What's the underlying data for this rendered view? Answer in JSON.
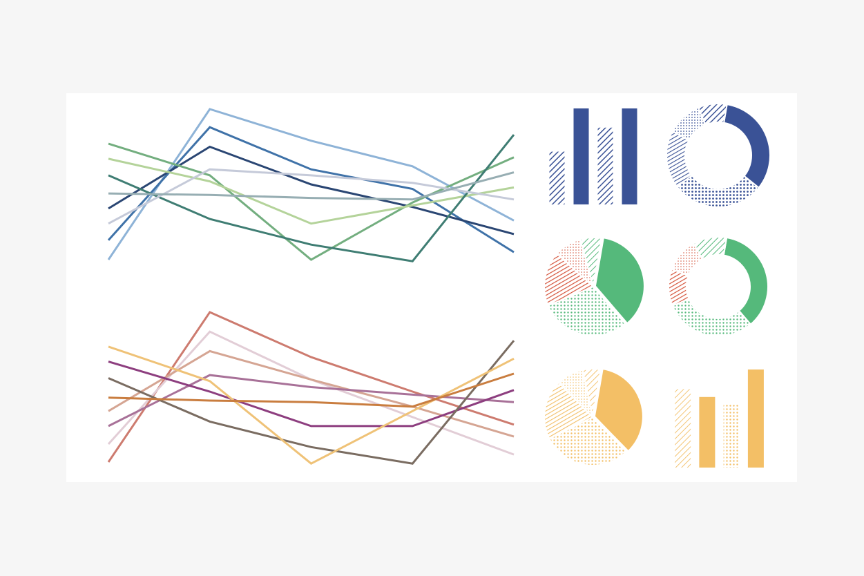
{
  "colors": {
    "background": "#f6f6f6",
    "panel": "#ffffff",
    "navy": "#3a5296",
    "green": "#55b97b",
    "red": "#d5553c",
    "yellow": "#f3bf66"
  },
  "chart_data": [
    {
      "type": "line",
      "x": [
        0,
        1,
        2,
        3,
        4
      ],
      "ylim": [
        0,
        100
      ],
      "series": [
        {
          "color": "#8eb3d7",
          "values": [
            0,
            100,
            79,
            62,
            26
          ]
        },
        {
          "color": "#3f72a8",
          "values": [
            13,
            88,
            60,
            47,
            5
          ]
        },
        {
          "color": "#2a4673",
          "values": [
            34,
            75,
            50,
            35,
            17
          ]
        },
        {
          "color": "#73ae7f",
          "values": [
            77,
            56,
            0,
            38,
            68
          ]
        },
        {
          "color": "#b4d39a",
          "values": [
            67,
            52,
            24,
            36,
            48
          ]
        },
        {
          "color": "#3f7d73",
          "values": [
            56,
            27,
            10,
            -1,
            83
          ]
        },
        {
          "color": "#c5cad9",
          "values": [
            24,
            60,
            56,
            51,
            40
          ]
        },
        {
          "color": "#97aeb3",
          "values": [
            44,
            43,
            41,
            40,
            58
          ]
        }
      ]
    },
    {
      "type": "line",
      "x": [
        0,
        1,
        2,
        3,
        4
      ],
      "ylim": [
        0,
        100
      ],
      "series": [
        {
          "color": "#cd7b6f",
          "values": [
            0,
            100,
            70,
            47,
            25
          ]
        },
        {
          "color": "#e2cdd6",
          "values": [
            12,
            87,
            55,
            30,
            5
          ]
        },
        {
          "color": "#d5a593",
          "values": [
            34,
            74,
            55,
            37,
            17
          ]
        },
        {
          "color": "#a87198",
          "values": [
            24,
            58,
            50,
            45,
            40
          ]
        },
        {
          "color": "#8d3e7f",
          "values": [
            67,
            47,
            24,
            24,
            48
          ]
        },
        {
          "color": "#7a6c61",
          "values": [
            56,
            27,
            10,
            -1,
            81
          ]
        },
        {
          "color": "#efc277",
          "values": [
            77,
            54,
            -1,
            34,
            69
          ]
        },
        {
          "color": "#c97d3f",
          "values": [
            43,
            41,
            40,
            37,
            59
          ]
        }
      ]
    },
    {
      "type": "bar",
      "color": "#3a5296",
      "values": [
        55,
        100,
        80,
        100
      ],
      "fills": [
        "hatch",
        "solid",
        "hatch",
        "solid"
      ]
    },
    {
      "type": "pie",
      "variant": "donut",
      "color": "#3a5296",
      "values": [
        33,
        29,
        18,
        11,
        9
      ],
      "fills": [
        "solid",
        "dots",
        "lines",
        "dots",
        "hatch"
      ]
    },
    {
      "type": "pie",
      "color": "#55b97b",
      "accent": "#d5553c",
      "values": [
        36,
        30,
        18,
        9,
        7
      ],
      "fills": [
        "solid",
        "dots",
        "lines",
        "dots",
        "hatch"
      ]
    },
    {
      "type": "pie",
      "variant": "donut",
      "color": "#55b97b",
      "accent": "#d5553c",
      "values": [
        36,
        30,
        12,
        11,
        11
      ],
      "fills": [
        "solid",
        "dots",
        "lines",
        "dots",
        "hatch"
      ]
    },
    {
      "type": "pie",
      "color": "#f3bf66",
      "values": [
        35,
        30,
        20,
        9,
        6
      ],
      "fills": [
        "solid",
        "dots",
        "lines",
        "dots",
        "hatch"
      ]
    },
    {
      "type": "bar",
      "color": "#f3bf66",
      "values": [
        80,
        72,
        65,
        100
      ],
      "fills": [
        "hatch",
        "solid",
        "dots",
        "solid"
      ]
    }
  ]
}
